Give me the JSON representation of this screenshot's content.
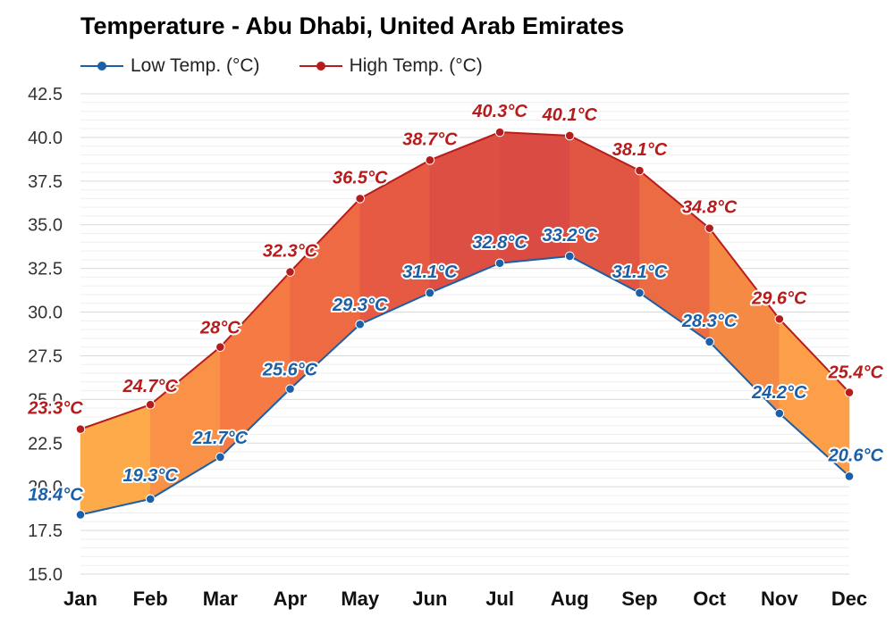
{
  "chart_data": {
    "type": "line",
    "title": "Temperature - Abu Dhabi, United Arab Emirates",
    "categories": [
      "Jan",
      "Feb",
      "Mar",
      "Apr",
      "May",
      "Jun",
      "Jul",
      "Aug",
      "Sep",
      "Oct",
      "Nov",
      "Dec"
    ],
    "series": [
      {
        "name": "Low Temp. (°C)",
        "color": "#1a5fa8",
        "values": [
          18.4,
          19.3,
          21.7,
          25.6,
          29.3,
          31.1,
          32.8,
          33.2,
          31.1,
          28.3,
          24.2,
          20.6
        ],
        "labels": [
          "18.4°C",
          "19.3°C",
          "21.7°C",
          "25.6°C",
          "29.3°C",
          "31.1°C",
          "32.8°C",
          "33.2°C",
          "31.1°C",
          "28.3°C",
          "24.2°C",
          "20.6°C"
        ]
      },
      {
        "name": "High Temp. (°C)",
        "color": "#b71c1c",
        "values": [
          23.3,
          24.7,
          28,
          32.3,
          36.5,
          38.7,
          40.3,
          40.1,
          38.1,
          34.8,
          29.6,
          25.4
        ],
        "labels": [
          "23.3°C",
          "24.7°C",
          "28°C",
          "32.3°C",
          "36.5°C",
          "38.7°C",
          "40.3°C",
          "40.1°C",
          "38.1°C",
          "34.8°C",
          "29.6°C",
          "25.4°C"
        ]
      }
    ],
    "ylim": [
      15,
      42.5
    ],
    "yticks": [
      "15.0",
      "17.5",
      "20.0",
      "22.5",
      "25.0",
      "27.5",
      "30.0",
      "32.5",
      "35.0",
      "37.5",
      "40.0",
      "42.5"
    ],
    "grid": true,
    "legend": "top-left",
    "band_colors": [
      "#fdab4a",
      "#f99146",
      "#f57a44",
      "#ee6a43",
      "#e65a43",
      "#dd4f43",
      "#d94b43",
      "#e15643",
      "#eb6b43",
      "#f58a45",
      "#fc9f48",
      "#fdac4a"
    ]
  }
}
